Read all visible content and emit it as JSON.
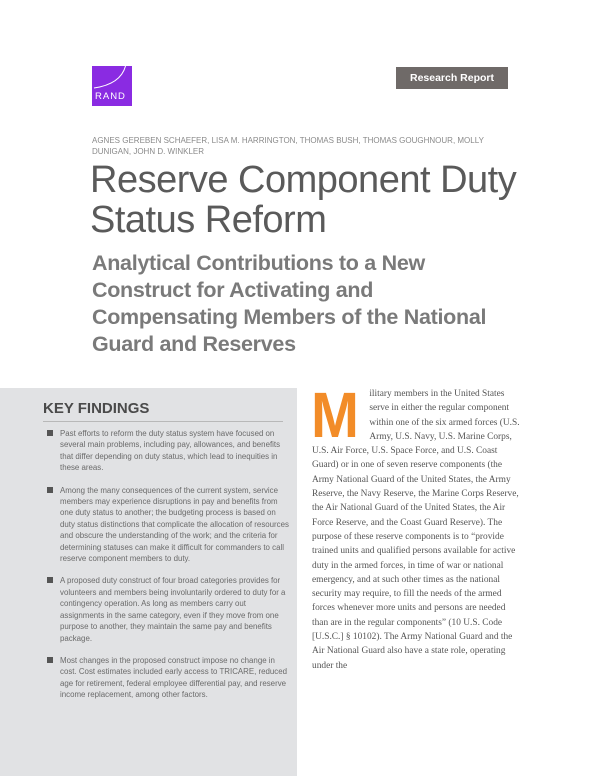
{
  "header": {
    "logo_text": "RAND",
    "badge": "Research Report",
    "brand_color": "#8a2be2"
  },
  "authors": "AGNES GEREBEN SCHAEFER, LISA M. HARRINGTON, THOMAS BUSH, THOMAS GOUGHNOUR, MOLLY DUNIGAN, JOHN D. WINKLER",
  "title": "Reserve Component Duty Status Reform",
  "subtitle": "Analytical Contributions to a New Construct for Activating and Compensating Members of the National Guard and Reserves",
  "key_findings": {
    "heading": "KEY FINDINGS",
    "items": [
      "Past efforts to reform the duty status system have focused on several main problems, including pay, allowances, and benefits that differ depending on duty status, which lead to inequities in these areas.",
      "Among the many consequences of the current system, service members may experience disruptions in pay and benefits from one duty status to another; the budgeting process is based on duty status distinctions that complicate the allocation of resources and obscure the understanding of the work; and the criteria for determining statuses can make it difficult for commanders to call reserve component members to duty.",
      "A proposed duty construct of four broad categories provides for volunteers and members being involuntarily ordered to duty for a contingency operation. As long as members carry out assignments in the same category, even if they move from one purpose to another, they maintain the same pay and benefits package.",
      "Most changes in the proposed construct impose no change in cost. Cost estimates included early access to TRICARE, reduced age for retirement, federal employee differential pay, and reserve income replacement, among other factors."
    ]
  },
  "body": {
    "drop_cap": "M",
    "drop_cap_color": "#f28c28",
    "text": "ilitary members in the United States serve in either the regular component within one of the six armed forces (U.S. Army, U.S. Navy, U.S. Marine Corps, U.S. Air Force, U.S. Space Force, and U.S. Coast Guard) or in one of seven reserve components (the Army National Guard of the United States, the Army Reserve, the Navy Reserve, the Marine Corps Reserve, the Air National Guard of the United States, the Air Force Reserve, and the Coast Guard Reserve). The purpose of these reserve compo­nents is to “provide trained units and qualified persons available for active duty in the armed forces, in time of war or national emergency, and at such other times as the national secu­rity may require, to fill the needs of the armed forces whenever more units and persons are needed than are in the regular components” (10 U.S. Code [U.S.C.] § 10102). The Army National Guard and the Air National Guard also have a state role, operating under the"
  }
}
